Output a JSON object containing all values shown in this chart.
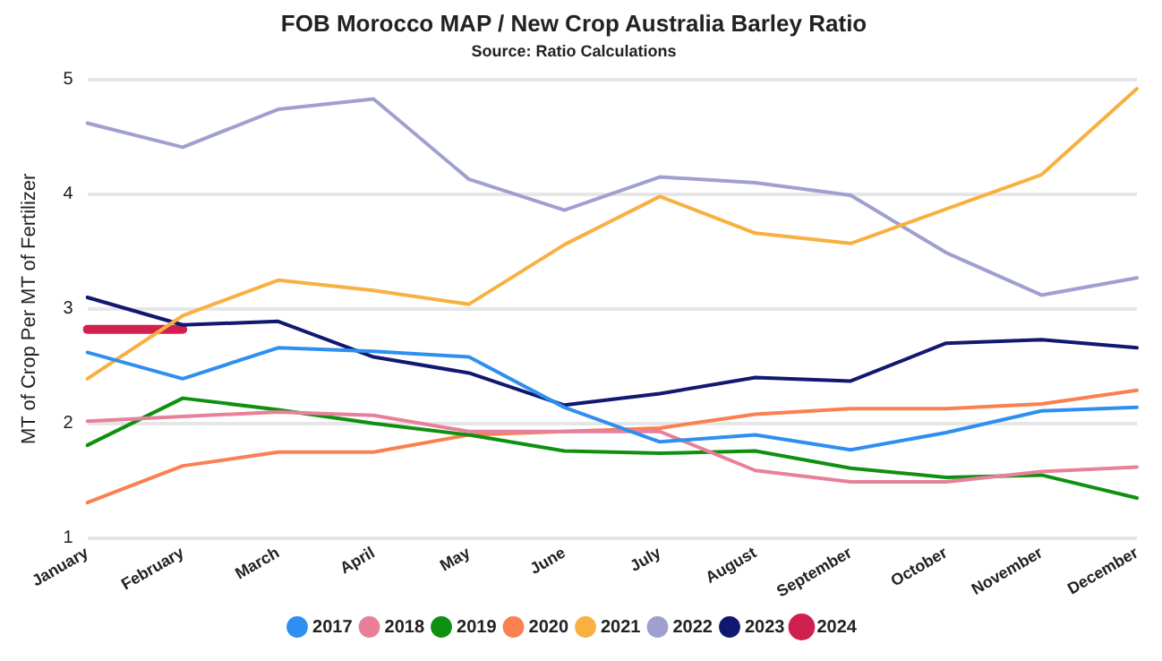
{
  "chart_data": {
    "type": "line",
    "title": "FOB Morocco MAP / New Crop Australia Barley Ratio",
    "subtitle": "Source: Ratio Calculations",
    "ylabel": "MT of Crop Per MT of Fertilizer",
    "categories": [
      "January",
      "February",
      "March",
      "April",
      "May",
      "June",
      "July",
      "August",
      "September",
      "October",
      "November",
      "December"
    ],
    "ylim": [
      1,
      5
    ],
    "yticks": [
      1,
      2,
      3,
      4,
      5
    ],
    "grid": "y",
    "legend": "bottom",
    "marker": "none",
    "line_style": "solid",
    "series": [
      {
        "name": "2017",
        "color": "#2f8ff0",
        "values": [
          2.62,
          2.39,
          2.66,
          2.63,
          2.58,
          2.14,
          1.84,
          1.9,
          1.77,
          1.92,
          2.11,
          2.14
        ]
      },
      {
        "name": "2018",
        "color": "#e8809a",
        "values": [
          2.02,
          2.06,
          2.1,
          2.07,
          1.93,
          1.93,
          1.93,
          1.59,
          1.49,
          1.49,
          1.58,
          1.62
        ]
      },
      {
        "name": "2019",
        "color": "#109010",
        "values": [
          1.81,
          2.22,
          2.12,
          2.0,
          1.9,
          1.76,
          1.74,
          1.76,
          1.61,
          1.53,
          1.55,
          1.35
        ]
      },
      {
        "name": "2020",
        "color": "#fa8050",
        "values": [
          1.31,
          1.63,
          1.75,
          1.75,
          1.9,
          1.93,
          1.96,
          2.08,
          2.13,
          2.13,
          2.17,
          2.29
        ]
      },
      {
        "name": "2021",
        "color": "#f8b040",
        "values": [
          2.39,
          2.94,
          3.25,
          3.16,
          3.04,
          3.56,
          3.98,
          3.66,
          3.57,
          3.87,
          4.17,
          4.92
        ]
      },
      {
        "name": "2022",
        "color": "#a0a0d0",
        "values": [
          4.62,
          4.41,
          4.74,
          4.83,
          4.13,
          3.86,
          4.15,
          4.1,
          3.99,
          3.49,
          3.12,
          3.27
        ]
      },
      {
        "name": "2023",
        "color": "#101870",
        "values": [
          3.1,
          2.86,
          2.89,
          2.58,
          2.44,
          2.16,
          2.26,
          2.4,
          2.37,
          2.7,
          2.73,
          2.66
        ]
      },
      {
        "name": "2024",
        "color": "#d02050",
        "values": [
          2.82,
          2.82,
          null,
          null,
          null,
          null,
          null,
          null,
          null,
          null,
          null,
          null
        ]
      }
    ]
  }
}
